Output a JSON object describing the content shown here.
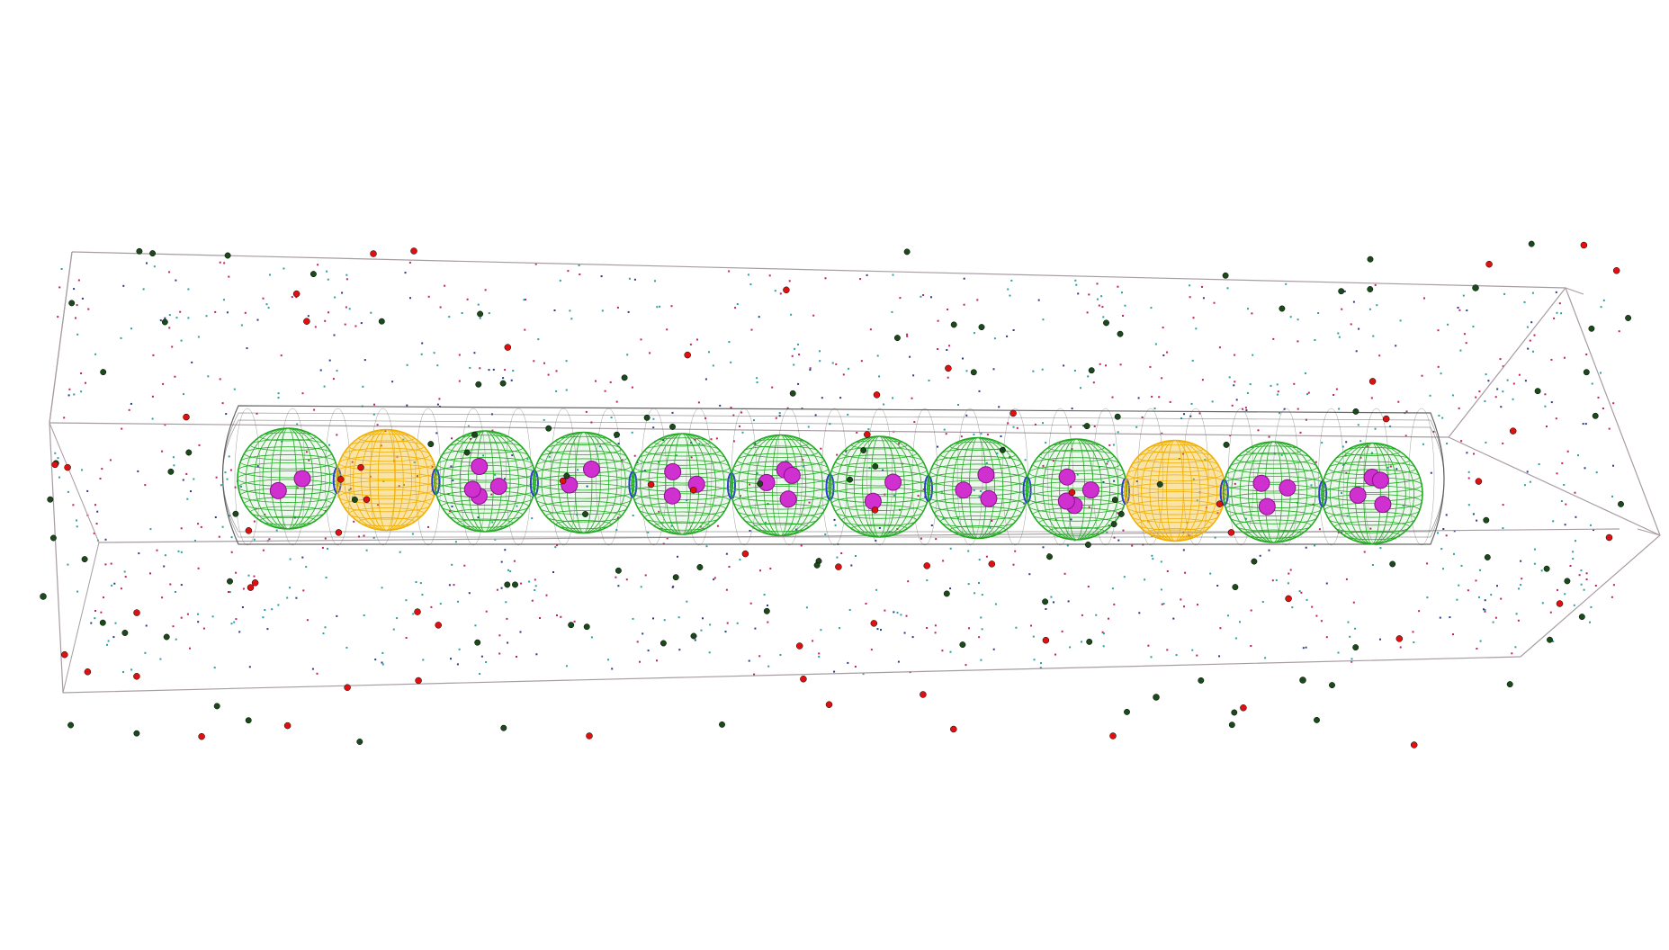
{
  "scene": {
    "colors": {
      "background": "#ffffff",
      "box_edges": "#a89ca4",
      "capsule_mesh": "#555555",
      "green_cell": "#22aa22",
      "yellow_cell": "#f0b000",
      "nucleoid": "#d030d0",
      "septum_ring": "#2a3cd0",
      "particle_red": "#e01010",
      "particle_darkgreen": "#1a4a1a",
      "speck_teal": "#2aa0a0",
      "speck_magenta": "#c02060",
      "speck_navy": "#283a8a"
    },
    "cells": [
      {
        "type": "green"
      },
      {
        "type": "yellow"
      },
      {
        "type": "green"
      },
      {
        "type": "green"
      },
      {
        "type": "green"
      },
      {
        "type": "green"
      },
      {
        "type": "green"
      },
      {
        "type": "green"
      },
      {
        "type": "green"
      },
      {
        "type": "yellow"
      },
      {
        "type": "green"
      },
      {
        "type": "green"
      }
    ],
    "icons": [
      "wireframe-simulation-box",
      "capsule-mesh",
      "wireframe-sphere",
      "nucleoid",
      "septum-ring",
      "particle"
    ]
  }
}
